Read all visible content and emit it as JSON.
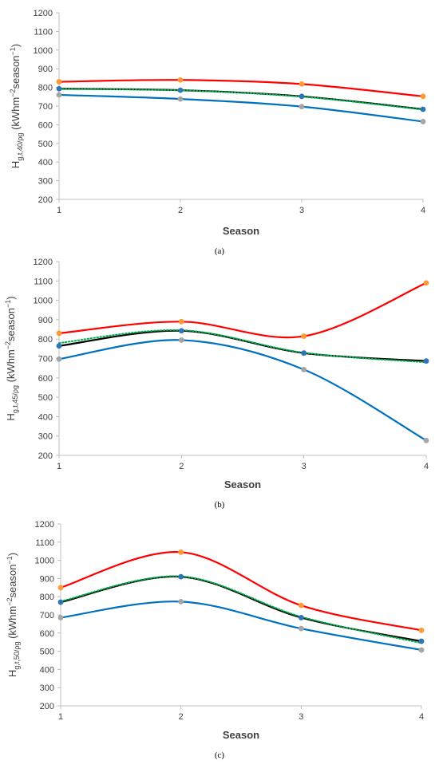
{
  "chart_data": [
    {
      "type": "line",
      "panel_label": "(a)",
      "xlabel": "Season",
      "ylabel": "Hg,t,40/ρg (kWhm−2season−1)",
      "ylabel_parts": {
        "main": "H",
        "sub": "g,t,40/ρg",
        "rest": " (kWhm",
        "sup1": "−2",
        "mid": "season",
        "sup2": "−1",
        "end": ")"
      },
      "x": [
        1,
        2,
        3,
        4
      ],
      "ylim": [
        200,
        1200
      ],
      "yticks": [
        200,
        300,
        400,
        500,
        600,
        700,
        800,
        900,
        1000,
        1100,
        1200
      ],
      "grid": false,
      "series": [
        {
          "color": "#ff0000",
          "marker_color": "#ff9933",
          "style": "solid",
          "values": [
            830,
            840,
            818,
            752
          ]
        },
        {
          "color": "#000000",
          "marker_color": "#2e75b6",
          "style": "solid",
          "values": [
            793,
            785,
            752,
            683
          ]
        },
        {
          "color": "#00b050",
          "style": "dotted",
          "values": [
            791,
            784,
            750,
            681
          ]
        },
        {
          "color": "#0070c0",
          "marker_color": "#a5a5a5",
          "style": "solid",
          "values": [
            760,
            738,
            697,
            617
          ]
        }
      ]
    },
    {
      "type": "line",
      "panel_label": "(b)",
      "xlabel": "Season",
      "ylabel": "Hg,t,45/ρg (kWhm−2season−1)",
      "ylabel_parts": {
        "main": "H",
        "sub": "g,t,45/ρg",
        "rest": " (kWhm",
        "sup1": "−2",
        "mid": "season",
        "sup2": "−1",
        "end": ")"
      },
      "x": [
        1,
        2,
        3,
        4
      ],
      "ylim": [
        200,
        1200
      ],
      "yticks": [
        200,
        300,
        400,
        500,
        600,
        700,
        800,
        900,
        1000,
        1100,
        1200
      ],
      "grid": false,
      "series": [
        {
          "color": "#ff0000",
          "marker_color": "#ff9933",
          "style": "solid",
          "values": [
            830,
            890,
            815,
            1090
          ]
        },
        {
          "color": "#000000",
          "marker_color": "#2e75b6",
          "style": "solid",
          "values": [
            765,
            843,
            728,
            687
          ]
        },
        {
          "color": "#00b050",
          "style": "dotted",
          "values": [
            780,
            846,
            730,
            680
          ]
        },
        {
          "color": "#0070c0",
          "marker_color": "#a5a5a5",
          "style": "solid",
          "values": [
            697,
            795,
            643,
            277
          ]
        }
      ]
    },
    {
      "type": "line",
      "panel_label": "(c)",
      "xlabel": "Season",
      "ylabel": "Hg,t,50/ρg (kWhm−2season−1)",
      "ylabel_parts": {
        "main": "H",
        "sub": "g,t,50/ρg",
        "rest": " (kWhm",
        "sup1": "−2",
        "mid": "season",
        "sup2": "−1",
        "end": ")"
      },
      "x": [
        1,
        2,
        3,
        4
      ],
      "ylim": [
        200,
        1200
      ],
      "yticks": [
        200,
        300,
        400,
        500,
        600,
        700,
        800,
        900,
        1000,
        1100,
        1200
      ],
      "grid": false,
      "series": [
        {
          "color": "#ff0000",
          "marker_color": "#ff9933",
          "style": "solid",
          "values": [
            850,
            1045,
            752,
            615
          ]
        },
        {
          "color": "#000000",
          "marker_color": "#2e75b6",
          "style": "solid",
          "values": [
            770,
            910,
            685,
            555
          ]
        },
        {
          "color": "#00b050",
          "style": "dotted",
          "values": [
            775,
            912,
            690,
            545
          ]
        },
        {
          "color": "#0070c0",
          "marker_color": "#a5a5a5",
          "style": "solid",
          "values": [
            685,
            773,
            625,
            507
          ]
        }
      ]
    }
  ]
}
